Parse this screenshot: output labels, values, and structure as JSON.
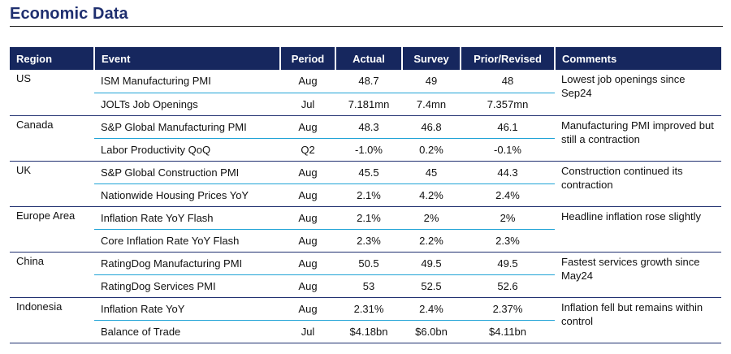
{
  "page": {
    "title": "Economic Data"
  },
  "table": {
    "headers": {
      "region": "Region",
      "event": "Event",
      "period": "Period",
      "actual": "Actual",
      "survey": "Survey",
      "prior": "Prior/Revised",
      "comments": "Comments"
    },
    "groups": [
      {
        "region": "US",
        "comment": "Lowest job openings since Sep24",
        "rows": [
          {
            "event": "ISM Manufacturing PMI",
            "period": "Aug",
            "actual": "48.7",
            "survey": "49",
            "prior": "48"
          },
          {
            "event": "JOLTs Job Openings",
            "period": "Jul",
            "actual": "7.181mn",
            "survey": "7.4mn",
            "prior": "7.357mn"
          }
        ]
      },
      {
        "region": "Canada",
        "comment": "Manufacturing PMI improved but still a contraction",
        "rows": [
          {
            "event": "S&P Global Manufacturing PMI",
            "period": "Aug",
            "actual": "48.3",
            "survey": "46.8",
            "prior": "46.1"
          },
          {
            "event": "Labor Productivity QoQ",
            "period": "Q2",
            "actual": "-1.0%",
            "survey": "0.2%",
            "prior": "-0.1%"
          }
        ]
      },
      {
        "region": "UK",
        "comment": "Construction continued its contraction",
        "rows": [
          {
            "event": "S&P Global Construction PMI",
            "period": "Aug",
            "actual": "45.5",
            "survey": "45",
            "prior": "44.3"
          },
          {
            "event": "Nationwide Housing Prices YoY",
            "period": "Aug",
            "actual": "2.1%",
            "survey": "4.2%",
            "prior": "2.4%"
          }
        ]
      },
      {
        "region": "Europe Area",
        "comment": "Headline inflation rose slightly",
        "rows": [
          {
            "event": "Inflation Rate YoY Flash",
            "period": "Aug",
            "actual": "2.1%",
            "survey": "2%",
            "prior": "2%"
          },
          {
            "event": "Core Inflation Rate YoY Flash",
            "period": "Aug",
            "actual": "2.3%",
            "survey": "2.2%",
            "prior": "2.3%"
          }
        ]
      },
      {
        "region": "China",
        "comment": "Fastest services growth since May24",
        "rows": [
          {
            "event": "RatingDog Manufacturing PMI",
            "period": "Aug",
            "actual": "50.5",
            "survey": "49.5",
            "prior": "49.5"
          },
          {
            "event": "RatingDog Services PMI",
            "period": "Aug",
            "actual": "53",
            "survey": "52.5",
            "prior": "52.6"
          }
        ]
      },
      {
        "region": "Indonesia",
        "comment": "Inflation fell but remains within control",
        "rows": [
          {
            "event": "Inflation Rate YoY",
            "period": "Aug",
            "actual": "2.31%",
            "survey": "2.4%",
            "prior": "2.37%"
          },
          {
            "event": "Balance of Trade",
            "period": "Jul",
            "actual": "$4.18bn",
            "survey": "$6.0bn",
            "prior": "$4.11bn"
          }
        ]
      }
    ]
  }
}
